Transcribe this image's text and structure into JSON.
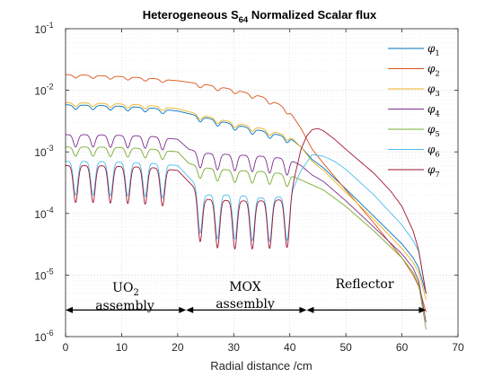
{
  "chart_data": {
    "type": "line",
    "title": {
      "main": "Heterogeneous S",
      "sub": "64",
      "tail": " Normalized Scalar flux"
    },
    "xlabel": "Radial distance /cm",
    "ylabel": "",
    "xlim": [
      0,
      70
    ],
    "ylim": [
      1e-06,
      0.1
    ],
    "yscale": "log",
    "grid": true,
    "legend_position": "top-right",
    "x_ticks": [
      0,
      10,
      20,
      30,
      40,
      50,
      60,
      70
    ],
    "x_tick_labels": [
      "0",
      "10",
      "20",
      "30",
      "40",
      "50",
      "60",
      "70"
    ],
    "y_ticks": [
      1e-06,
      1e-05,
      0.0001,
      0.001,
      0.01,
      0.1
    ],
    "y_tick_labels": [
      {
        "base": "10",
        "exp": "-6"
      },
      {
        "base": "10",
        "exp": "-5"
      },
      {
        "base": "10",
        "exp": "-4"
      },
      {
        "base": "10",
        "exp": "-3"
      },
      {
        "base": "10",
        "exp": "-2"
      },
      {
        "base": "10",
        "exp": "-1"
      }
    ],
    "series": [
      {
        "name": "φ",
        "sub": "1",
        "color": "#0072BD",
        "x": [
          0,
          5,
          10,
          15,
          20,
          25,
          30,
          35,
          40,
          42,
          44,
          46,
          50,
          55,
          60,
          62,
          63,
          64.3
        ],
        "y": [
          0.0058,
          0.0057,
          0.0055,
          0.0052,
          0.0046,
          0.0036,
          0.0028,
          0.0022,
          0.0017,
          0.0012,
          0.00075,
          0.00055,
          0.00025,
          9e-05,
          3.2e-05,
          1.9e-05,
          1.3e-05,
          5e-06
        ]
      },
      {
        "name": "φ",
        "sub": "2",
        "color": "#D95319",
        "x": [
          0,
          5,
          10,
          15,
          20,
          25,
          30,
          35,
          38,
          40,
          42,
          44,
          46,
          50,
          55,
          60,
          62,
          63,
          64.3
        ],
        "y": [
          0.018,
          0.0175,
          0.0167,
          0.0157,
          0.0143,
          0.0124,
          0.0103,
          0.0079,
          0.006,
          0.0045,
          0.0024,
          0.0011,
          0.00065,
          0.00024,
          7e-05,
          1.9e-05,
          1e-05,
          6.5e-06,
          2.5e-06
        ]
      },
      {
        "name": "φ",
        "sub": "3",
        "color": "#EDB120",
        "x": [
          0,
          5,
          10,
          15,
          20,
          25,
          30,
          35,
          40,
          42,
          44,
          46,
          50,
          55,
          60,
          62,
          63,
          64.3
        ],
        "y": [
          0.0063,
          0.0062,
          0.006,
          0.0057,
          0.005,
          0.0038,
          0.003,
          0.0024,
          0.0018,
          0.0012,
          0.0007,
          0.0005,
          0.00022,
          8e-05,
          2.7e-05,
          1.6e-05,
          1.1e-05,
          4e-06
        ]
      },
      {
        "name": "φ",
        "sub": "4",
        "color": "#7E2F8E",
        "x": [
          0,
          5,
          10,
          15,
          20,
          22,
          25,
          30,
          35,
          38,
          40,
          42,
          44,
          46,
          50,
          55,
          60,
          62,
          63,
          64.3
        ],
        "y": [
          0.0019,
          0.0019,
          0.00185,
          0.0018,
          0.0016,
          0.0011,
          0.00095,
          0.0009,
          0.00085,
          0.0008,
          0.00075,
          0.0006,
          0.00042,
          0.00033,
          0.00016,
          6e-05,
          2.2e-05,
          1.3e-05,
          8e-06,
          1.7e-06
        ]
      },
      {
        "name": "φ",
        "sub": "5",
        "color": "#77AC30",
        "x": [
          0,
          5,
          10,
          15,
          20,
          22,
          25,
          30,
          35,
          38,
          40,
          42,
          44,
          46,
          50,
          55,
          60,
          62,
          63,
          64.3
        ],
        "y": [
          0.0012,
          0.0012,
          0.00118,
          0.00112,
          0.001,
          0.00065,
          0.00055,
          0.0005,
          0.00048,
          0.00045,
          0.00042,
          0.00035,
          0.00029,
          0.00024,
          0.00013,
          5.2e-05,
          1.9e-05,
          1.1e-05,
          7e-06,
          1.3e-06
        ]
      },
      {
        "name": "φ",
        "sub": "6",
        "color": "#4DBEEE",
        "x": [
          0,
          5,
          10,
          15,
          20,
          25,
          30,
          35,
          40,
          42,
          44,
          46,
          48,
          50,
          55,
          60,
          62,
          63,
          64.3
        ],
        "y": [
          0.0007,
          0.0007,
          0.00068,
          0.00066,
          0.0006,
          0.0002,
          0.0002,
          0.00018,
          0.00019,
          0.0005,
          0.0009,
          0.00085,
          0.0007,
          0.00052,
          0.0002,
          6.5e-05,
          3.6e-05,
          2.4e-05,
          5e-06
        ]
      },
      {
        "name": "φ",
        "sub": "7",
        "color": "#A2142F",
        "x": [
          0,
          5,
          10,
          15,
          20,
          25,
          30,
          35,
          40,
          41,
          42,
          43,
          44,
          45,
          46,
          48,
          50,
          55,
          58,
          60,
          62,
          63,
          64.3
        ],
        "y": [
          0.0006,
          0.0006,
          0.00058,
          0.00056,
          0.0005,
          0.00017,
          0.00016,
          0.00016,
          0.00017,
          0.00045,
          0.0011,
          0.0018,
          0.0023,
          0.0024,
          0.0022,
          0.0016,
          0.0011,
          0.00045,
          0.00023,
          0.00013,
          5.2e-05,
          2.5e-05,
          5e-06
        ]
      }
    ],
    "annotations": {
      "uo2": {
        "line1_main": "UO",
        "line1_sub": "2",
        "line2": "assembly"
      },
      "mox": {
        "line1": "MOX",
        "line2": "assembly"
      },
      "reflector": {
        "label": "Reflector"
      }
    },
    "region_arrows": [
      {
        "from": 0,
        "to": 21.5
      },
      {
        "from": 21.5,
        "to": 43
      },
      {
        "from": 43,
        "to": 64.3
      }
    ],
    "uo2_pins_approx": [
      1.8,
      4.9,
      8.0,
      11.1,
      14.2,
      17.3
    ],
    "mox_pins_approx": [
      24.0,
      27.1,
      30.2,
      33.3,
      36.4,
      39.5
    ]
  }
}
